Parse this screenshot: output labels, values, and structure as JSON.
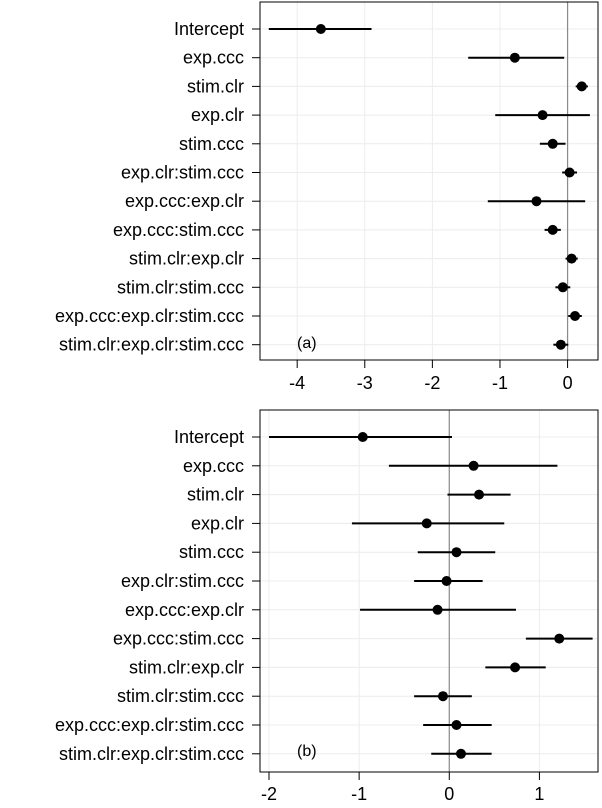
{
  "chart_data": [
    {
      "type": "forest",
      "panel_label": "(a)",
      "categories": [
        "Intercept",
        "exp.ccc",
        "stim.clr",
        "exp.clr",
        "stim.ccc",
        "exp.clr:stim.ccc",
        "exp.ccc:exp.clr",
        "exp.ccc:stim.ccc",
        "stim.clr:exp.clr",
        "stim.clr:stim.ccc",
        "exp.ccc:exp.clr:stim.ccc",
        "stim.clr:exp.clr:stim.ccc"
      ],
      "estimates": [
        -3.65,
        -0.78,
        0.21,
        -0.37,
        -0.22,
        0.03,
        -0.46,
        -0.22,
        0.06,
        -0.07,
        0.11,
        -0.1
      ],
      "ci_low": [
        -4.42,
        -1.47,
        0.12,
        -1.07,
        -0.41,
        -0.08,
        -1.18,
        -0.34,
        -0.03,
        -0.18,
        0.01,
        -0.21
      ],
      "ci_high": [
        -2.9,
        -0.05,
        0.3,
        0.33,
        -0.03,
        0.14,
        0.26,
        -0.1,
        0.15,
        0.04,
        0.21,
        0.01
      ],
      "xlim": [
        -4.55,
        0.45
      ],
      "xticks": [
        "-4",
        "-3",
        "-2",
        "-1",
        "0"
      ],
      "reference_line": 0,
      "grid": true
    },
    {
      "type": "forest",
      "panel_label": "(b)",
      "categories": [
        "Intercept",
        "exp.ccc",
        "stim.clr",
        "exp.clr",
        "stim.ccc",
        "exp.clr:stim.ccc",
        "exp.ccc:exp.clr",
        "exp.ccc:stim.ccc",
        "stim.clr:exp.clr",
        "stim.clr:stim.ccc",
        "exp.ccc:exp.clr:stim.ccc",
        "stim.clr:exp.clr:stim.ccc"
      ],
      "estimates": [
        -0.96,
        0.27,
        0.33,
        -0.25,
        0.08,
        -0.03,
        -0.13,
        1.22,
        0.73,
        -0.07,
        0.08,
        0.13
      ],
      "ci_low": [
        -2.0,
        -0.67,
        -0.02,
        -1.08,
        -0.35,
        -0.39,
        -0.99,
        0.85,
        0.4,
        -0.39,
        -0.29,
        -0.2
      ],
      "ci_high": [
        0.03,
        1.2,
        0.68,
        0.61,
        0.51,
        0.37,
        0.74,
        1.59,
        1.07,
        0.25,
        0.47,
        0.47
      ],
      "xlim": [
        -2.1,
        1.65
      ],
      "xticks": [
        "-2",
        "-1",
        "0",
        "1"
      ],
      "reference_line": 0,
      "grid": true
    }
  ]
}
